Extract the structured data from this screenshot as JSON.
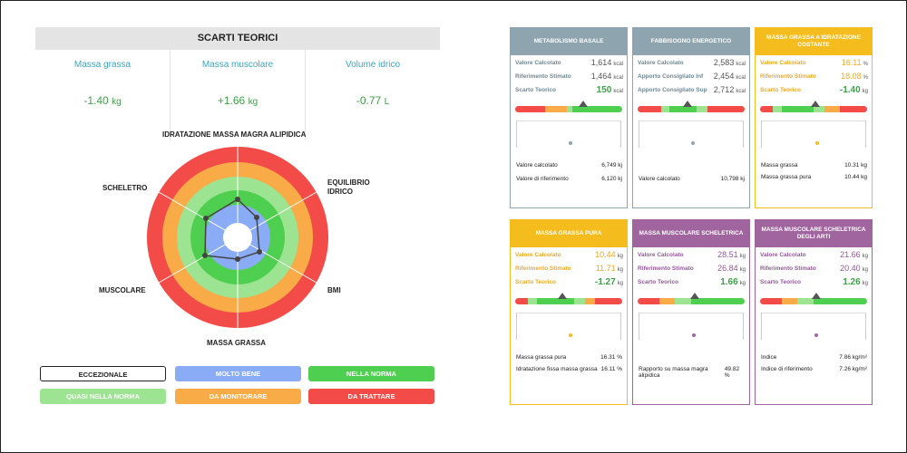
{
  "left": {
    "title": "SCARTI TEORICI",
    "summary": [
      {
        "label": "Massa grassa",
        "value": "-1.40",
        "unit": "kg"
      },
      {
        "label": "Massa muscolare",
        "value": "+1.66",
        "unit": "kg"
      },
      {
        "label": "Volume idrico",
        "value": "-0.77",
        "unit": "L"
      }
    ],
    "axes": {
      "top": "IDRATAZIONE MASSA MAGRA ALIPIDICA",
      "top_right_1": "EQUILIBRIO",
      "top_right_2": "IDRICO",
      "top_left": "SCHELETRO",
      "bottom_left": "MUSCOLARE",
      "bottom_right": "BMI",
      "bottom": "MASSA GRASSA"
    },
    "legend": [
      {
        "label": "ECCEZIONALE",
        "color": "#ffffff"
      },
      {
        "label": "MOLTO BENE",
        "color": "#8aabf5"
      },
      {
        "label": "NELLA NORMA",
        "color": "#4fcf4f"
      },
      {
        "label": "QUASI NELLA NORMA",
        "color": "#9ce392"
      },
      {
        "label": "DA MONITORARE",
        "color": "#f9ab47"
      },
      {
        "label": "DA TRATTARE",
        "color": "#f24b48"
      }
    ]
  },
  "cards": [
    {
      "title": "METABOLISMO BASALE",
      "color": "#8ea4ae",
      "rows": [
        {
          "label": "Valore Calcolato",
          "value": "1,614",
          "unit": "kcal"
        },
        {
          "label": "Riferimento Stimato",
          "value": "1,464",
          "unit": "kcal"
        },
        {
          "label": "Scarto Teorico",
          "value": "150",
          "unit": "kcal"
        }
      ],
      "foot": [
        {
          "label": "Valore calcolato",
          "value": "6,749 kj"
        },
        {
          "label": "Valore di riferimento",
          "value": "6,120 kj"
        }
      ]
    },
    {
      "title": "FABBISOGNO ENERGETICO",
      "color": "#8ea4ae",
      "rows": [
        {
          "label": "Valore Calcolato",
          "value": "2,583",
          "unit": "kcal"
        },
        {
          "label": "Apporto Consigliato Inf",
          "value": "2,454",
          "unit": "kcal"
        },
        {
          "label": "Apporto Consigliato Sup",
          "value": "2,712",
          "unit": "kcal"
        }
      ],
      "foot": [
        {
          "label": "Valore calcolato",
          "value": "10,798 kj"
        }
      ]
    },
    {
      "title": "MASSA GRASSA A IDRATAZIONE COSTANTE",
      "color": "#f5bc1e",
      "rows": [
        {
          "label": "Valore Calcolato",
          "value": "16.11",
          "unit": "%"
        },
        {
          "label": "Riferimento Stimato",
          "value": "18.08",
          "unit": "%"
        },
        {
          "label": "Scarto Teorico",
          "value": "-1.40",
          "unit": "kg"
        }
      ],
      "foot": [
        {
          "label": "Massa grassa",
          "value": "10.31 kg"
        },
        {
          "label": "Massa grassa pura",
          "value": "10.44 kg"
        }
      ]
    },
    {
      "title": "MASSA GRASSA PURA",
      "color": "#f5bc1e",
      "rows": [
        {
          "label": "Valore Calcolato",
          "value": "10.44",
          "unit": "kg"
        },
        {
          "label": "Riferimento Stimato",
          "value": "11.71",
          "unit": "kg"
        },
        {
          "label": "Scarto Teorico",
          "value": "-1.27",
          "unit": "kg"
        }
      ],
      "foot": [
        {
          "label": "Massa grassa pura",
          "value": "16.31 %"
        },
        {
          "label": "Idratazione fissa massa grassa",
          "value": "16.11 %"
        }
      ]
    },
    {
      "title": "MASSA MUSCOLARE SCHELETRICA",
      "color": "#a0649e",
      "rows": [
        {
          "label": "Valore Calcolato",
          "value": "28.51",
          "unit": "kg"
        },
        {
          "label": "Riferimento Stimato",
          "value": "26.84",
          "unit": "kg"
        },
        {
          "label": "Scarto Teorico",
          "value": "1.66",
          "unit": "kg"
        }
      ],
      "foot": [
        {
          "label": "Rapporto su massa magra alipidica",
          "value": "49.82 %"
        }
      ]
    },
    {
      "title": "MASSA MUSCOLARE SCHELETRICA DEGLI ARTI",
      "color": "#a0649e",
      "rows": [
        {
          "label": "Valore Calcolato",
          "value": "21.66",
          "unit": "kg"
        },
        {
          "label": "Riferimento Stimato",
          "value": "20.40",
          "unit": "kg"
        },
        {
          "label": "Scarto Teorico",
          "value": "1.26",
          "unit": "kg"
        }
      ],
      "foot": [
        {
          "label": "Indice",
          "value": "7.86 kg/m²"
        },
        {
          "label": "Indice di riferimento",
          "value": "7.26 kg/m²"
        }
      ]
    }
  ]
}
